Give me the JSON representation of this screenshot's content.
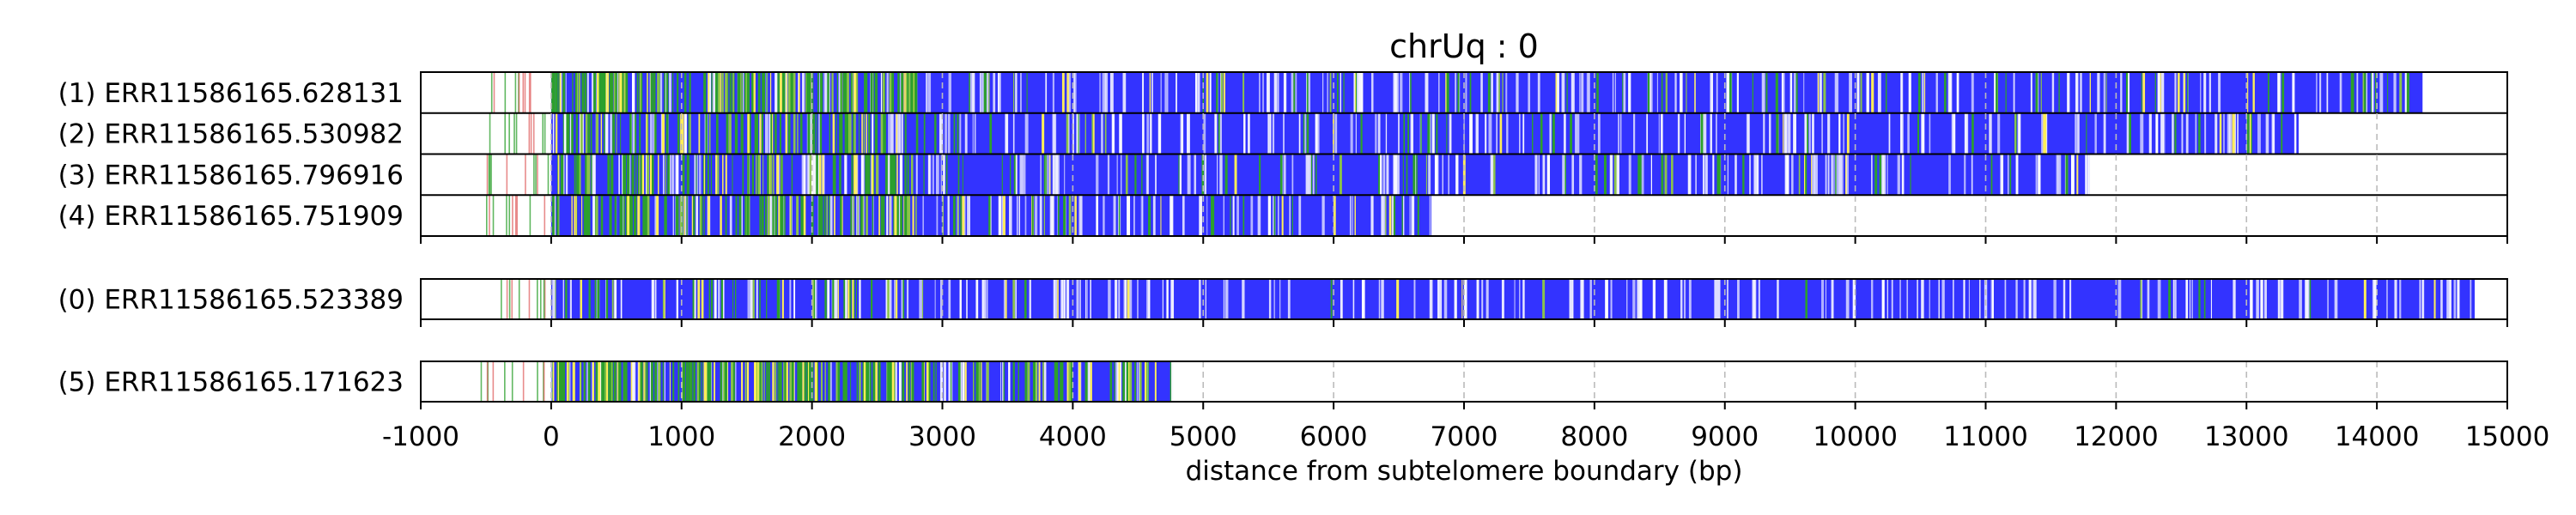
{
  "chart_data": {
    "type": "track",
    "title": "chrUq : 0",
    "xlabel": "distance from subtelomere boundary (bp)",
    "xlim": [
      -1000,
      15000
    ],
    "xticks": [
      "-1000",
      "0",
      "1000",
      "2000",
      "3000",
      "4000",
      "5000",
      "6000",
      "7000",
      "8000",
      "9000",
      "10000",
      "11000",
      "12000",
      "13000",
      "14000",
      "15000"
    ],
    "xtick_values": [
      -1000,
      0,
      1000,
      2000,
      3000,
      4000,
      5000,
      6000,
      7000,
      8000,
      9000,
      10000,
      11000,
      12000,
      13000,
      14000,
      15000
    ],
    "grid": "vertical dashed",
    "colors": {
      "repeat": "#3333ff",
      "variant_green": "#2ca02c",
      "variant_lime": "#8bc34a",
      "variant_yellow": "#ffee58",
      "variant_red": "#e06666",
      "gap": "#ffffff",
      "grid": "#bbbbbb"
    },
    "groups": [
      {
        "reads": [
          {
            "label": "(1) ERR11586165.628131",
            "start": -500,
            "repeat_start": 0,
            "end": 14350,
            "green_density": "high"
          },
          {
            "label": "(2) ERR11586165.530982",
            "start": -500,
            "repeat_start": 0,
            "end": 13400,
            "green_density": "medium"
          },
          {
            "label": "(3) ERR11586165.796916",
            "start": -500,
            "repeat_start": 0,
            "end": 11800,
            "green_density": "medium"
          },
          {
            "label": "(4) ERR11586165.751909",
            "start": -500,
            "repeat_start": 0,
            "end": 6750,
            "green_density": "medium"
          }
        ]
      },
      {
        "reads": [
          {
            "label": "(0) ERR11586165.523389",
            "start": -500,
            "repeat_start": 0,
            "end": 14750,
            "green_density": "low"
          }
        ]
      },
      {
        "reads": [
          {
            "label": "(5) ERR11586165.171623",
            "start": -600,
            "repeat_start": 0,
            "end": 4770,
            "green_density": "high"
          }
        ]
      }
    ]
  }
}
